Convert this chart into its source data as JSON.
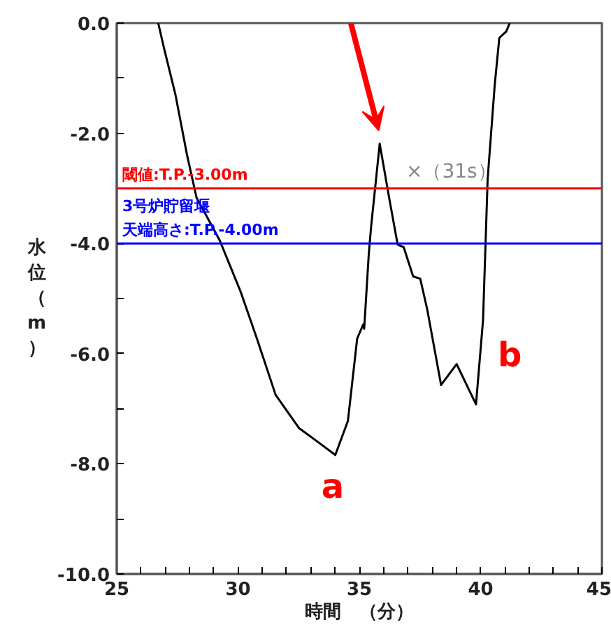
{
  "chart_data": {
    "type": "line",
    "xlabel": "時間　（分）",
    "ylabel": "水位（m）",
    "x": [
      26.71,
      26.94,
      27.42,
      27.9,
      28.29,
      29.24,
      29.63,
      30.11,
      30.78,
      31.55,
      32.51,
      33.28,
      34.01,
      34.53,
      34.91,
      35.16,
      35.2,
      35.39,
      35.49,
      35.84,
      36.26,
      36.58,
      36.83,
      37.22,
      37.51,
      37.8,
      38.37,
      39.01,
      39.81,
      40.1,
      40.29,
      40.58,
      40.77,
      41.06,
      41.2
    ],
    "series": [
      {
        "color": "#000000",
        "values": [
          0,
          -0.44,
          -1.3,
          -2.4,
          -3.17,
          -3.94,
          -4.36,
          -4.88,
          -5.73,
          -6.75,
          -7.35,
          -7.6,
          -7.84,
          -7.22,
          -5.73,
          -5.47,
          -5.55,
          -4.19,
          -3.68,
          -2.19,
          -3.25,
          -4.02,
          -4.07,
          -4.6,
          -4.64,
          -5.2,
          -6.57,
          -6.19,
          -6.92,
          -5.39,
          -2.83,
          -1.13,
          -0.27,
          -0.15,
          0
        ]
      }
    ],
    "xlim": [
      25,
      45
    ],
    "ylim": [
      -10,
      0
    ],
    "xticks": [
      25,
      {
        "value": 26,
        "label": null
      },
      {
        "value": 27,
        "label": null
      },
      {
        "value": 28,
        "label": null
      },
      {
        "value": 29,
        "label": null
      },
      30,
      {
        "value": 31,
        "label": null
      },
      {
        "value": 32,
        "label": null
      },
      {
        "value": 33,
        "label": null
      },
      {
        "value": 34,
        "label": null
      },
      35,
      {
        "value": 36,
        "label": null
      },
      {
        "value": 37,
        "label": null
      },
      {
        "value": 38,
        "label": null
      },
      {
        "value": 39,
        "label": null
      },
      40,
      {
        "value": 41,
        "label": null
      },
      {
        "value": 42,
        "label": null
      },
      {
        "value": 43,
        "label": null
      },
      {
        "value": 44,
        "label": null
      },
      45
    ],
    "yticks": [
      {
        "value": 0,
        "label": "0.0"
      },
      {
        "value": -1,
        "label": null
      },
      {
        "value": -2,
        "label": "-2.0"
      },
      {
        "value": -3,
        "label": null
      },
      {
        "value": -4,
        "label": "-4.0"
      },
      {
        "value": -5,
        "label": null
      },
      {
        "value": -6,
        "label": "-6.0"
      },
      {
        "value": -7,
        "label": null
      },
      {
        "value": -8,
        "label": "-8.0"
      },
      {
        "value": -9,
        "label": null
      },
      {
        "value": -10,
        "label": "-10.0"
      }
    ],
    "ref_lines": [
      {
        "axis": "y",
        "value": -3,
        "label": "閾値:T.P.-3.00m",
        "color": "#ff0000"
      },
      {
        "axis": "y",
        "value": -4,
        "label": "3号炉貯留堰天端高さ:T.P.-4.00m",
        "color": "#0000ff"
      }
    ],
    "annotations": [
      "a",
      "b",
      "×（31s）"
    ],
    "grid": false
  }
}
